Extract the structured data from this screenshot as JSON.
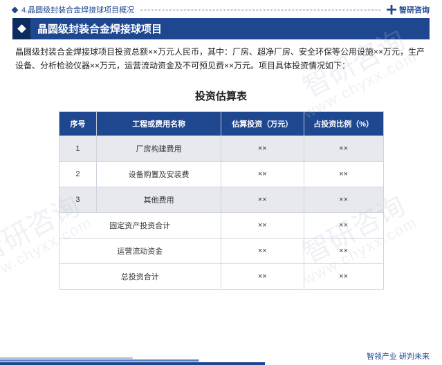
{
  "breadcrumb": {
    "text": "4.晶圆级封装合金焊接球项目概况"
  },
  "brand": {
    "top": "智研咨询",
    "footer": "智领产业 研判未来"
  },
  "title": "晶圆级封装合金焊接球项目",
  "intro": "晶圆级封装合金焊接球项目投资总额××万元人民币，其中：厂房、超净厂房、安全环保等公用设施××万元，生产设备、分析检验仪器××万元，运营流动资金及不可预见费××万元。项目具体投资情况如下：",
  "table": {
    "title": "投资估算表",
    "columns": [
      "序号",
      "工程或费用名称",
      "估算投资（万元）",
      "占投资比例（%）"
    ],
    "rows": [
      {
        "seq": "1",
        "name": "厂房构建费用",
        "est": "××",
        "pct": "××",
        "zebra": true
      },
      {
        "seq": "2",
        "name": "设备购置及安装费",
        "est": "××",
        "pct": "××",
        "zebra": false
      },
      {
        "seq": "3",
        "name": "其他费用",
        "est": "××",
        "pct": "××",
        "zebra": true
      }
    ],
    "summary": [
      {
        "name": "固定资产投资合计",
        "est": "××",
        "pct": "××"
      },
      {
        "name": "运营流动资金",
        "est": "××",
        "pct": "××"
      },
      {
        "name": "总投资合计",
        "est": "××",
        "pct": "××"
      }
    ]
  },
  "watermarks": {
    "brand": "智研咨询",
    "url": "www.chyxx.com"
  },
  "colors": {
    "primary": "#1e4790",
    "primary_dark": "#0d2b5e",
    "zebra": "#e7e9ee",
    "border": "#d0d4de"
  }
}
